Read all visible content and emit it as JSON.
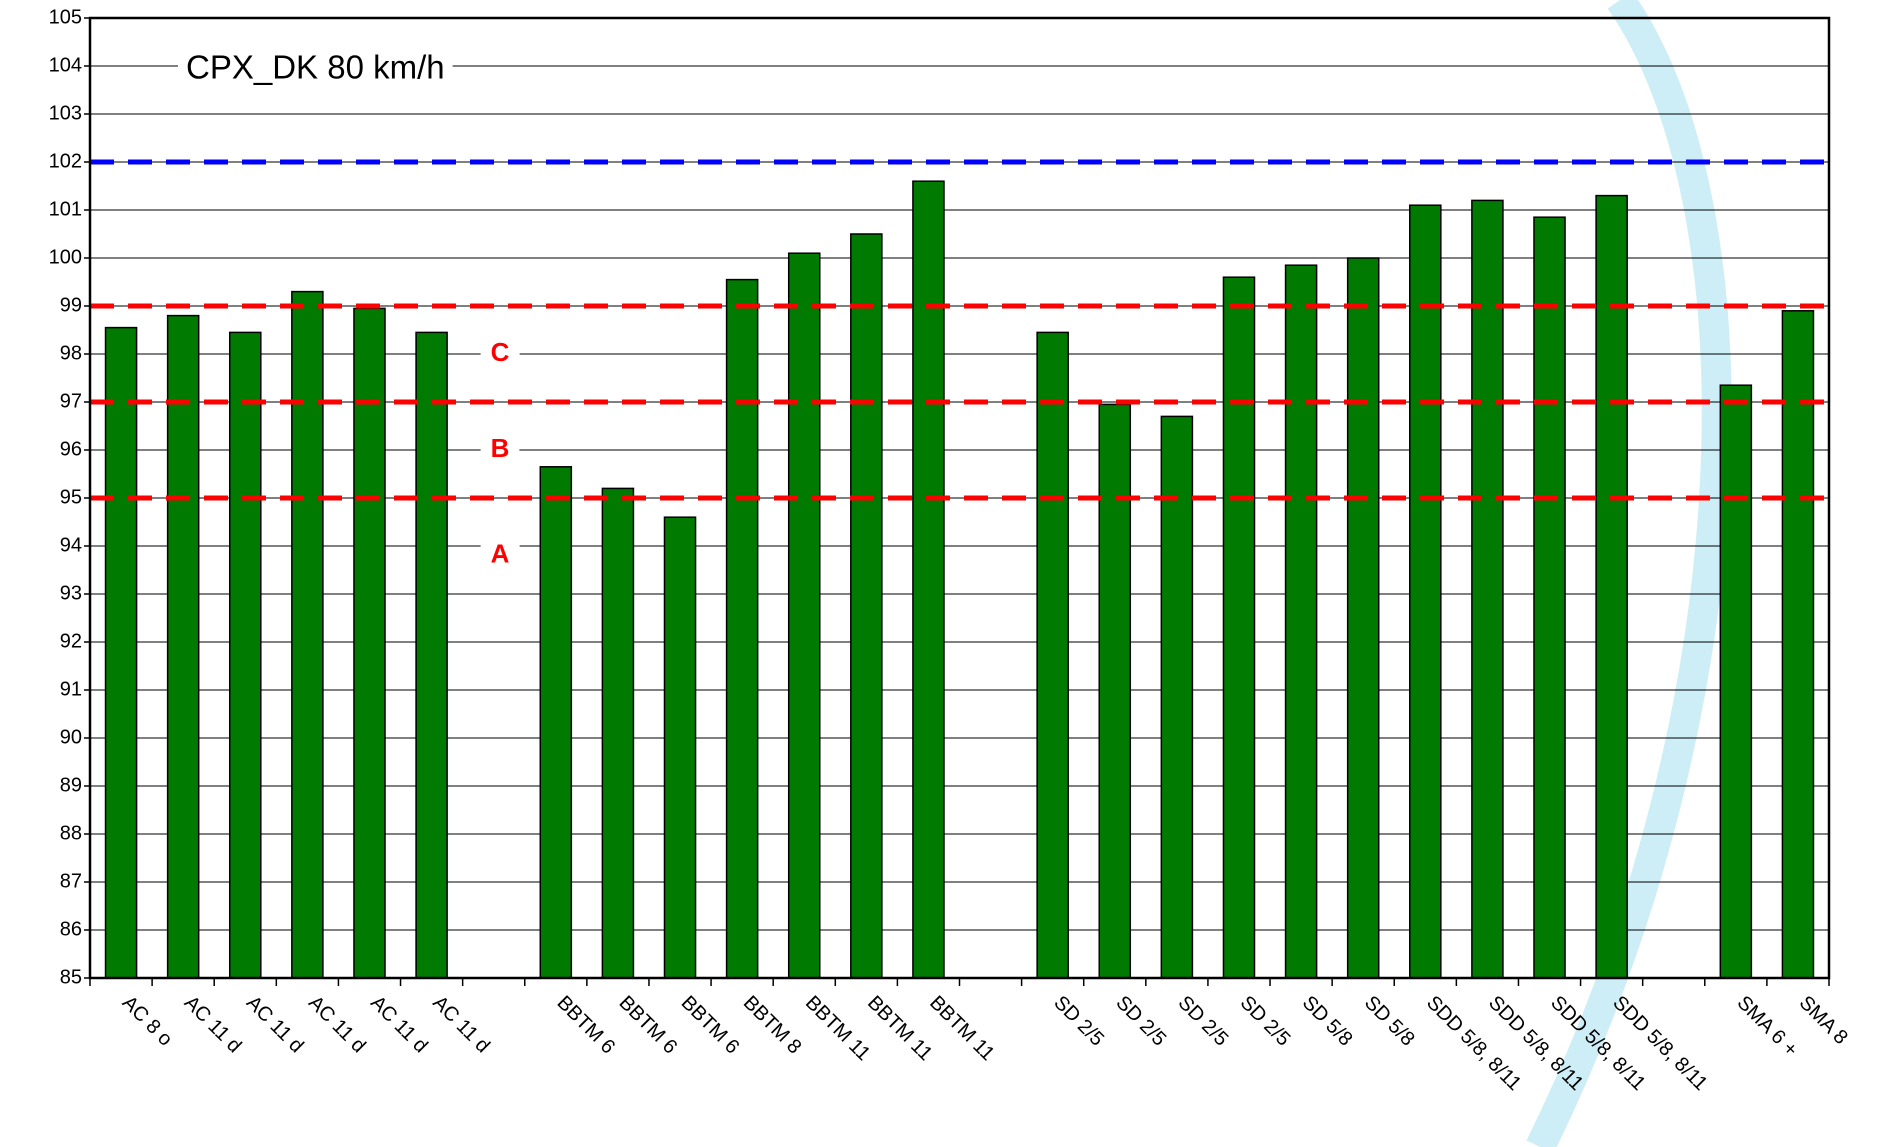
{
  "chart_data": {
    "type": "bar",
    "annotation": "CPX_DK 80 km/h",
    "categories": [
      "AC 8 o",
      "AC 11 d",
      "AC 11 d",
      "AC 11 d",
      "AC 11 d",
      "AC 11 d",
      null,
      "BBTM 6",
      "BBTM 6",
      "BBTM 6",
      "BBTM 8",
      "BBTM 11",
      "BBTM 11",
      "BBTM 11",
      null,
      "SD 2/5",
      "SD 2/5",
      "SD 2/5",
      "SD 2/5",
      "SD 5/8",
      "SD 5/8",
      "SDD 5/8, 8/11",
      "SDD 5/8, 8/11",
      "SDD 5/8, 8/11",
      "SDD 5/8, 8/11",
      null,
      "SMA 6 +",
      "SMA 8"
    ],
    "values": [
      98.55,
      98.8,
      98.45,
      99.3,
      98.95,
      98.45,
      null,
      95.65,
      95.2,
      94.6,
      99.55,
      100.1,
      100.5,
      101.6,
      null,
      98.45,
      96.95,
      96.7,
      99.6,
      99.85,
      100.0,
      101.1,
      101.2,
      100.85,
      101.3,
      null,
      97.35,
      98.9
    ],
    "color": "#007a00",
    "ylim": [
      85,
      105
    ],
    "yticks": [
      85,
      86,
      87,
      88,
      89,
      90,
      91,
      92,
      93,
      94,
      95,
      96,
      97,
      98,
      99,
      100,
      101,
      102,
      103,
      104,
      105
    ],
    "grid": true,
    "reference_lines": [
      {
        "value": 102,
        "color": "#0000ff"
      },
      {
        "value": 99,
        "color": "#ff0000"
      },
      {
        "value": 97,
        "color": "#ff0000"
      },
      {
        "value": 95,
        "color": "#ff0000"
      }
    ],
    "zones": [
      "C",
      "B",
      "A"
    ]
  }
}
